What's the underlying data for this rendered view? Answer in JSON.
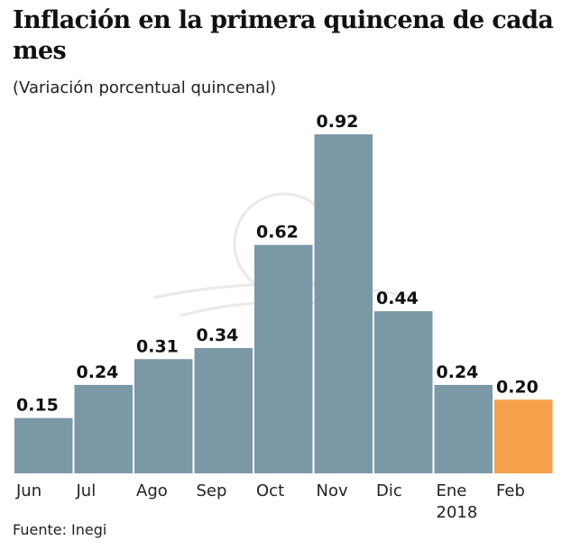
{
  "chart_data": {
    "type": "bar",
    "title": "Inflación en la primera quincena de cada mes",
    "subtitle": "(Variación porcentual quincenal)",
    "categories": [
      "Jun",
      "Jul",
      "Ago",
      "Sep",
      "Oct",
      "Nov",
      "Dic",
      "Ene\n2018",
      "Feb"
    ],
    "values": [
      0.15,
      0.24,
      0.31,
      0.34,
      0.62,
      0.92,
      0.44,
      0.24,
      0.2
    ],
    "data_labels": [
      "0.15",
      "0.24",
      "0.31",
      "0.34",
      "0.62",
      "0.92",
      "0.44",
      "0.24",
      "0.20"
    ],
    "colors": [
      "#7b98a6",
      "#7b98a6",
      "#7b98a6",
      "#7b98a6",
      "#7b98a6",
      "#7b98a6",
      "#7b98a6",
      "#7b98a6",
      "#f7a04a"
    ],
    "xlabel": "",
    "ylabel": "",
    "ylim": [
      0,
      0.92
    ],
    "grid": false,
    "source": "Fuente: Inegi"
  }
}
